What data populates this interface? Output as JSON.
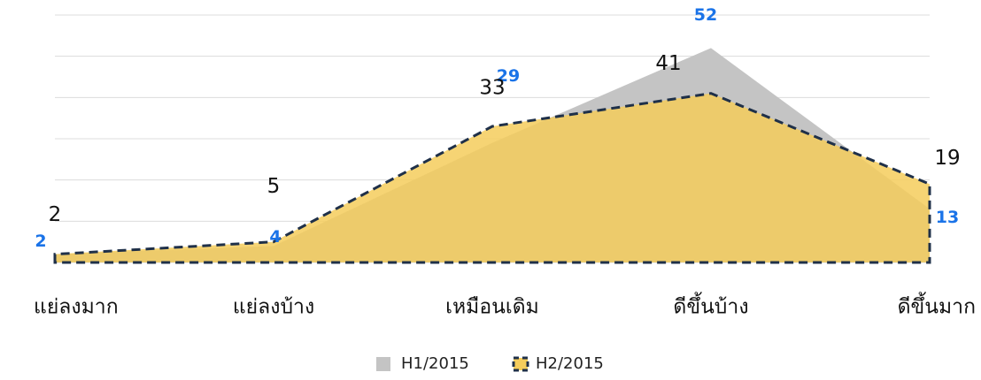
{
  "chart_data": {
    "type": "area",
    "categories": [
      "แย่ลงมาก",
      "แย่ลงบ้าง",
      "เหมือนเดิม",
      "ดีขึ้นบ้าง",
      "ดีขึ้นมาก"
    ],
    "series": [
      {
        "name": "H1/2015",
        "color": "#c4c4c4",
        "values": [
          2,
          4,
          29,
          52,
          13
        ]
      },
      {
        "name": "H2/2015",
        "color": "#f5cd5c",
        "values": [
          2,
          5,
          33,
          41,
          19
        ]
      }
    ],
    "ylim": [
      0,
      60
    ],
    "yticks": [
      0,
      10,
      20,
      30,
      40,
      50,
      60
    ],
    "grid": true,
    "legend": "bottom"
  }
}
